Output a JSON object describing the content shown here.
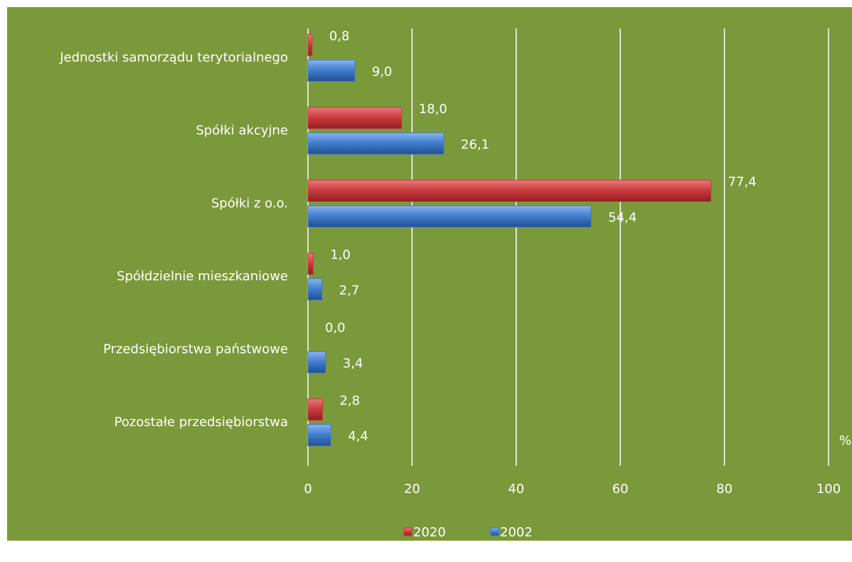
{
  "chart_data": {
    "type": "bar",
    "orientation": "horizontal",
    "categories": [
      "Jednostki samorządu terytorialnego",
      "Spółki akcyjne",
      "Spółki z o.o.",
      "Spółdzielnie mieszkaniowe",
      "Przedsiębiorstwa państwowe",
      "Pozostałe przedsiębiorstwa"
    ],
    "series": [
      {
        "name": "2020",
        "color": "#c8393b",
        "values": [
          0.8,
          18.0,
          77.4,
          1.0,
          0.0,
          2.8
        ],
        "value_labels": [
          "0,8",
          "18,0",
          "77,4",
          "1,0",
          "0,0",
          "2,8"
        ]
      },
      {
        "name": "2002",
        "color": "#3f7bcc",
        "values": [
          9.0,
          26.1,
          54.4,
          2.7,
          3.4,
          4.4
        ],
        "value_labels": [
          "9,0",
          "26,1",
          "54,4",
          "2,7",
          "3,4",
          "4,4"
        ]
      }
    ],
    "xlim": [
      0,
      100
    ],
    "xticks": [
      0,
      20,
      40,
      60,
      80,
      100
    ],
    "xlabel": "%",
    "grid": true,
    "legend": "bottom"
  }
}
